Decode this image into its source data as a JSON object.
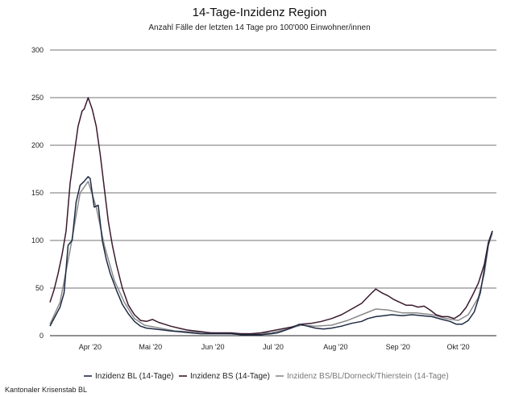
{
  "chart_data": {
    "type": "line",
    "title": "14-Tage-Inzidenz Region",
    "subtitle": "Anzahl Fälle der letzten 14 Tage pro 100'000 Einwohner/innen",
    "ylim": [
      0,
      300
    ],
    "yticks": [
      0,
      50,
      100,
      150,
      200,
      250,
      300
    ],
    "xlim": [
      0,
      222
    ],
    "xticks": [
      {
        "day": 20,
        "label": "Apr '20"
      },
      {
        "day": 50,
        "label": "Mai '20"
      },
      {
        "day": 81,
        "label": "Jun '20"
      },
      {
        "day": 111,
        "label": "Jul '20"
      },
      {
        "day": 142,
        "label": "Aug '20"
      },
      {
        "day": 173,
        "label": "Sep '20"
      },
      {
        "day": 203,
        "label": "Okt '20"
      }
    ],
    "grid": true,
    "legend_position": "bottom",
    "series": [
      {
        "name": "Inzidenz BL (14-Tage)",
        "color": "#1f2a44",
        "points": [
          [
            0,
            10
          ],
          [
            3,
            22
          ],
          [
            5,
            30
          ],
          [
            7,
            45
          ],
          [
            9,
            95
          ],
          [
            11,
            100
          ],
          [
            13,
            140
          ],
          [
            15,
            158
          ],
          [
            17,
            162
          ],
          [
            19,
            167
          ],
          [
            20,
            165
          ],
          [
            22,
            135
          ],
          [
            24,
            137
          ],
          [
            26,
            100
          ],
          [
            28,
            80
          ],
          [
            30,
            65
          ],
          [
            33,
            48
          ],
          [
            36,
            33
          ],
          [
            39,
            23
          ],
          [
            42,
            15
          ],
          [
            45,
            10
          ],
          [
            48,
            8
          ],
          [
            52,
            7
          ],
          [
            56,
            6
          ],
          [
            60,
            5
          ],
          [
            65,
            4
          ],
          [
            70,
            3
          ],
          [
            75,
            2
          ],
          [
            80,
            2
          ],
          [
            85,
            2
          ],
          [
            90,
            2
          ],
          [
            95,
            1
          ],
          [
            100,
            1
          ],
          [
            105,
            1
          ],
          [
            110,
            2
          ],
          [
            113,
            3
          ],
          [
            116,
            5
          ],
          [
            120,
            8
          ],
          [
            124,
            12
          ],
          [
            128,
            10
          ],
          [
            132,
            8
          ],
          [
            136,
            7
          ],
          [
            140,
            8
          ],
          [
            145,
            10
          ],
          [
            150,
            13
          ],
          [
            155,
            15
          ],
          [
            158,
            18
          ],
          [
            162,
            20
          ],
          [
            166,
            21
          ],
          [
            170,
            22
          ],
          [
            175,
            21
          ],
          [
            180,
            22
          ],
          [
            185,
            21
          ],
          [
            190,
            20
          ],
          [
            195,
            17
          ],
          [
            199,
            15
          ],
          [
            202,
            12
          ],
          [
            205,
            12
          ],
          [
            208,
            16
          ],
          [
            211,
            25
          ],
          [
            214,
            45
          ],
          [
            216,
            70
          ],
          [
            218,
            96
          ],
          [
            220,
            110
          ]
        ]
      },
      {
        "name": "Inzidenz BS (14-Tage)",
        "color": "#3a1a2e",
        "points": [
          [
            0,
            35
          ],
          [
            2,
            48
          ],
          [
            4,
            65
          ],
          [
            6,
            85
          ],
          [
            8,
            110
          ],
          [
            10,
            160
          ],
          [
            12,
            190
          ],
          [
            14,
            220
          ],
          [
            16,
            236
          ],
          [
            17,
            238
          ],
          [
            19,
            250
          ],
          [
            21,
            238
          ],
          [
            23,
            220
          ],
          [
            25,
            190
          ],
          [
            27,
            155
          ],
          [
            29,
            120
          ],
          [
            31,
            95
          ],
          [
            33,
            75
          ],
          [
            36,
            50
          ],
          [
            39,
            32
          ],
          [
            42,
            22
          ],
          [
            45,
            16
          ],
          [
            48,
            15
          ],
          [
            51,
            17
          ],
          [
            54,
            14
          ],
          [
            57,
            12
          ],
          [
            60,
            10
          ],
          [
            64,
            8
          ],
          [
            68,
            6
          ],
          [
            72,
            5
          ],
          [
            76,
            4
          ],
          [
            80,
            3
          ],
          [
            85,
            3
          ],
          [
            90,
            3
          ],
          [
            95,
            2
          ],
          [
            100,
            2
          ],
          [
            105,
            3
          ],
          [
            110,
            5
          ],
          [
            115,
            7
          ],
          [
            120,
            9
          ],
          [
            125,
            12
          ],
          [
            130,
            13
          ],
          [
            135,
            15
          ],
          [
            140,
            18
          ],
          [
            145,
            22
          ],
          [
            150,
            28
          ],
          [
            155,
            34
          ],
          [
            160,
            45
          ],
          [
            162,
            49
          ],
          [
            165,
            45
          ],
          [
            168,
            42
          ],
          [
            171,
            38
          ],
          [
            174,
            35
          ],
          [
            177,
            32
          ],
          [
            180,
            32
          ],
          [
            183,
            30
          ],
          [
            186,
            31
          ],
          [
            189,
            27
          ],
          [
            192,
            22
          ],
          [
            195,
            20
          ],
          [
            198,
            20
          ],
          [
            201,
            18
          ],
          [
            204,
            22
          ],
          [
            207,
            30
          ],
          [
            210,
            42
          ],
          [
            213,
            55
          ],
          [
            216,
            75
          ],
          [
            218,
            98
          ],
          [
            220,
            110
          ]
        ]
      },
      {
        "name": "Inzidenz BS/BL/Dorneck/Thierstein (14-Tage)",
        "color": "#8a8a8a",
        "points": [
          [
            0,
            12
          ],
          [
            5,
            35
          ],
          [
            10,
            90
          ],
          [
            15,
            150
          ],
          [
            19,
            162
          ],
          [
            23,
            135
          ],
          [
            27,
            95
          ],
          [
            32,
            58
          ],
          [
            37,
            35
          ],
          [
            42,
            18
          ],
          [
            47,
            11
          ],
          [
            52,
            9
          ],
          [
            57,
            7
          ],
          [
            62,
            5
          ],
          [
            70,
            4
          ],
          [
            80,
            3
          ],
          [
            90,
            2
          ],
          [
            100,
            2
          ],
          [
            110,
            3
          ],
          [
            118,
            7
          ],
          [
            125,
            11
          ],
          [
            132,
            10
          ],
          [
            140,
            11
          ],
          [
            148,
            16
          ],
          [
            155,
            22
          ],
          [
            162,
            28
          ],
          [
            168,
            27
          ],
          [
            175,
            24
          ],
          [
            182,
            24
          ],
          [
            190,
            22
          ],
          [
            197,
            18
          ],
          [
            203,
            16
          ],
          [
            208,
            22
          ],
          [
            213,
            40
          ],
          [
            216,
            65
          ],
          [
            218,
            95
          ],
          [
            220,
            108
          ]
        ]
      }
    ]
  },
  "source": "Kantonaler Krisenstab BL"
}
